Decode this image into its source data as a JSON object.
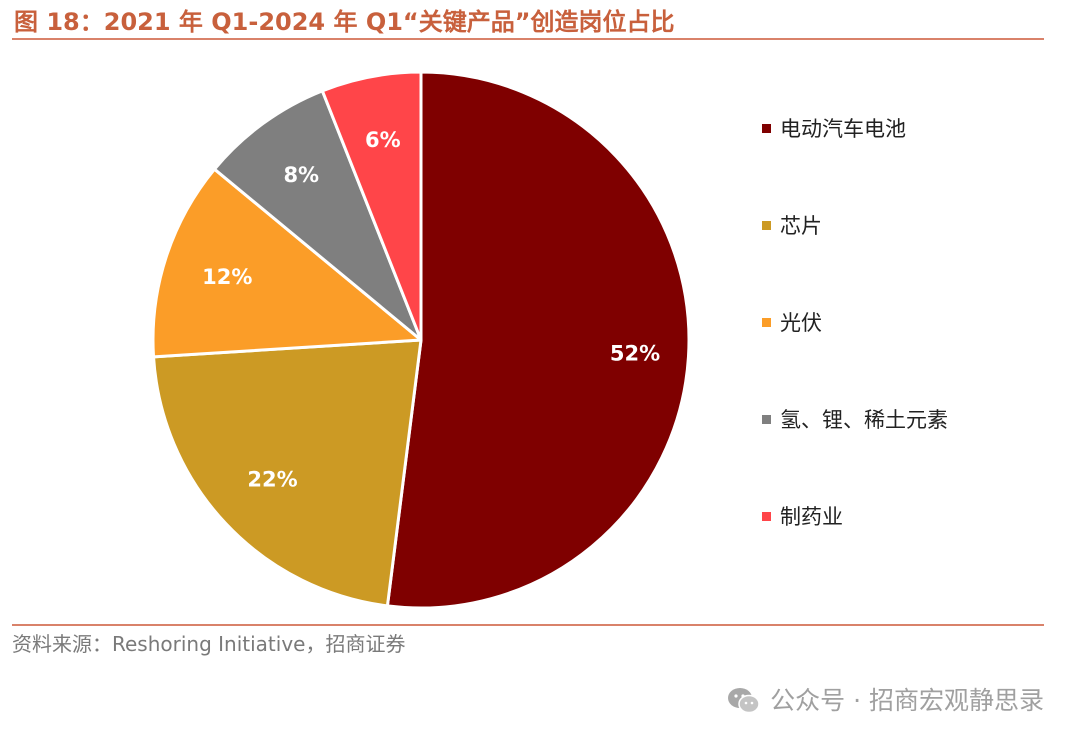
{
  "title": "图 18：2021 年 Q1-2024 年 Q1“关键产品”创造岗位占比",
  "chart_data": {
    "type": "pie",
    "title": "图 18：2021 年 Q1-2024 年 Q1“关键产品”创造岗位占比",
    "slices": [
      {
        "label": "电动汽车电池",
        "value": 52,
        "display": "52%",
        "color": "#7f0000"
      },
      {
        "label": "芯片",
        "value": 22,
        "display": "22%",
        "color": "#cc9a24"
      },
      {
        "label": "光伏",
        "value": 12,
        "display": "12%",
        "color": "#fb9d28"
      },
      {
        "label": "氢、锂、稀土元素",
        "value": 8,
        "display": "8%",
        "color": "#7f7f7f"
      },
      {
        "label": "制药业",
        "value": 6,
        "display": "6%",
        "color": "#ff4549"
      }
    ],
    "start": "12 o'clock",
    "direction": "clockwise",
    "legend_position": "right"
  },
  "source": "资料来源：Reshoring Initiative，招商证券",
  "watermark": {
    "icon": "wechat-icon",
    "text": "公众号 · 招商宏观静思录"
  }
}
